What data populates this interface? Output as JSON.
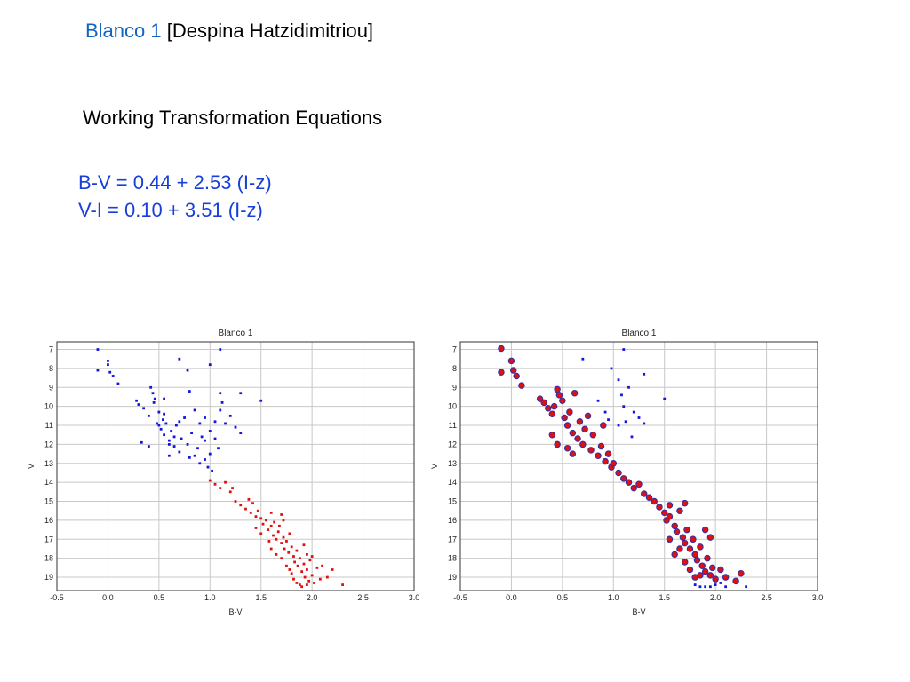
{
  "header": {
    "title_accent": "Blanco 1",
    "title_rest": " [Despina Hatzidimitriou]",
    "subtitle": "Working Transformation Equations",
    "equations": [
      "B-V = 0.44 + 2.53  (I-z)",
      "V-I = 0.10 + 3.51 (I-z)"
    ]
  },
  "colors": {
    "accent": "#1565c0",
    "equation": "#1a3fd8",
    "blue_points": "#1515e0",
    "red_points": "#e01010",
    "circle_outline": "#3a2da0"
  },
  "chart_data": [
    {
      "type": "scatter",
      "title": "Blanco 1",
      "xlabel": "B-V",
      "ylabel": "V",
      "xlim": [
        -0.5,
        3.0
      ],
      "ylim": [
        19.7,
        6.6
      ],
      "y_inverted": true,
      "grid": true,
      "xticks": [
        -0.5,
        0.0,
        0.5,
        1.0,
        1.5,
        2.0,
        2.5,
        3.0
      ],
      "xtick_labels": [
        "-0.5",
        "0.0",
        "0.5",
        "1.0",
        "1.5",
        "2.0",
        "2.5",
        "3.0"
      ],
      "yticks": [
        7,
        8,
        9,
        10,
        11,
        12,
        13,
        14,
        15,
        16,
        17,
        18,
        19
      ],
      "ytick_labels": [
        "7",
        "8",
        "9",
        "10",
        "11",
        "12",
        "13",
        "14",
        "15",
        "16",
        "17",
        "18",
        "19"
      ],
      "series": [
        {
          "color": "#1515e0",
          "marker": "square",
          "points": [
            [
              -0.1,
              7.0
            ],
            [
              -0.1,
              8.1
            ],
            [
              0.0,
              7.6
            ],
            [
              0.0,
              7.8
            ],
            [
              0.02,
              8.2
            ],
            [
              0.05,
              8.4
            ],
            [
              0.1,
              8.8
            ],
            [
              0.7,
              7.5
            ],
            [
              0.78,
              8.1
            ],
            [
              1.0,
              7.8
            ],
            [
              1.1,
              7.0
            ],
            [
              0.28,
              9.7
            ],
            [
              0.3,
              9.9
            ],
            [
              0.35,
              10.1
            ],
            [
              0.4,
              10.5
            ],
            [
              0.42,
              9.0
            ],
            [
              0.44,
              9.3
            ],
            [
              0.46,
              9.6
            ],
            [
              0.48,
              10.9
            ],
            [
              0.5,
              10.3
            ],
            [
              0.52,
              11.2
            ],
            [
              0.54,
              10.7
            ],
            [
              0.55,
              11.5
            ],
            [
              0.57,
              10.9
            ],
            [
              0.6,
              11.8
            ],
            [
              0.62,
              11.3
            ],
            [
              0.65,
              12.1
            ],
            [
              0.67,
              11.0
            ],
            [
              0.7,
              12.4
            ],
            [
              0.72,
              11.7
            ],
            [
              0.75,
              10.6
            ],
            [
              0.78,
              12.0
            ],
            [
              0.8,
              12.7
            ],
            [
              0.82,
              11.4
            ],
            [
              0.85,
              12.6
            ],
            [
              0.88,
              12.2
            ],
            [
              0.9,
              13.0
            ],
            [
              0.92,
              11.6
            ],
            [
              0.95,
              12.8
            ],
            [
              0.98,
              13.2
            ],
            [
              1.0,
              12.5
            ],
            [
              1.02,
              13.4
            ],
            [
              0.45,
              9.8
            ],
            [
              0.5,
              11.0
            ],
            [
              0.55,
              10.4
            ],
            [
              0.6,
              12.0
            ],
            [
              0.65,
              11.6
            ],
            [
              0.7,
              10.8
            ],
            [
              0.33,
              11.9
            ],
            [
              0.4,
              12.1
            ],
            [
              0.6,
              12.6
            ],
            [
              0.55,
              9.6
            ],
            [
              0.85,
              10.2
            ],
            [
              0.9,
              10.9
            ],
            [
              0.95,
              11.8
            ],
            [
              1.05,
              10.8
            ],
            [
              1.1,
              10.2
            ],
            [
              1.15,
              10.9
            ],
            [
              1.2,
              10.5
            ],
            [
              1.25,
              11.1
            ],
            [
              1.3,
              11.4
            ],
            [
              1.1,
              9.3
            ],
            [
              1.12,
              9.8
            ],
            [
              1.3,
              9.3
            ],
            [
              1.5,
              9.7
            ],
            [
              1.05,
              11.7
            ],
            [
              0.95,
              10.6
            ],
            [
              0.8,
              9.2
            ],
            [
              1.0,
              11.3
            ],
            [
              1.08,
              12.2
            ]
          ]
        },
        {
          "color": "#e01010",
          "marker": "square",
          "points": [
            [
              1.0,
              13.9
            ],
            [
              1.05,
              14.1
            ],
            [
              1.1,
              14.3
            ],
            [
              1.15,
              14.0
            ],
            [
              1.2,
              14.5
            ],
            [
              1.22,
              14.3
            ],
            [
              1.25,
              15.0
            ],
            [
              1.3,
              15.2
            ],
            [
              1.35,
              15.4
            ],
            [
              1.38,
              14.9
            ],
            [
              1.4,
              15.6
            ],
            [
              1.42,
              15.1
            ],
            [
              1.45,
              15.8
            ],
            [
              1.47,
              15.5
            ],
            [
              1.5,
              15.9
            ],
            [
              1.52,
              16.2
            ],
            [
              1.55,
              16.0
            ],
            [
              1.57,
              16.5
            ],
            [
              1.6,
              16.3
            ],
            [
              1.62,
              16.8
            ],
            [
              1.63,
              16.1
            ],
            [
              1.65,
              17.0
            ],
            [
              1.67,
              16.6
            ],
            [
              1.7,
              17.2
            ],
            [
              1.72,
              16.9
            ],
            [
              1.73,
              17.5
            ],
            [
              1.75,
              17.1
            ],
            [
              1.77,
              17.7
            ],
            [
              1.78,
              16.7
            ],
            [
              1.8,
              17.4
            ],
            [
              1.82,
              17.9
            ],
            [
              1.83,
              18.2
            ],
            [
              1.85,
              17.6
            ],
            [
              1.86,
              18.4
            ],
            [
              1.88,
              18.0
            ],
            [
              1.9,
              18.7
            ],
            [
              1.92,
              18.3
            ],
            [
              1.93,
              19.0
            ],
            [
              1.95,
              18.6
            ],
            [
              1.97,
              19.2
            ],
            [
              1.98,
              18.1
            ],
            [
              2.0,
              18.9
            ],
            [
              2.02,
              19.3
            ],
            [
              2.05,
              18.5
            ],
            [
              2.08,
              19.1
            ],
            [
              2.1,
              18.4
            ],
            [
              2.15,
              19.0
            ],
            [
              2.2,
              18.6
            ],
            [
              2.3,
              19.4
            ],
            [
              1.7,
              18.0
            ],
            [
              1.75,
              18.4
            ],
            [
              1.8,
              18.8
            ],
            [
              1.85,
              19.3
            ],
            [
              1.9,
              19.5
            ],
            [
              1.6,
              17.5
            ],
            [
              1.65,
              17.8
            ],
            [
              1.88,
              19.4
            ],
            [
              1.95,
              19.4
            ],
            [
              1.82,
              19.1
            ],
            [
              1.78,
              18.6
            ],
            [
              1.68,
              16.3
            ],
            [
              1.72,
              16.0
            ],
            [
              1.95,
              17.8
            ],
            [
              2.0,
              17.9
            ],
            [
              1.92,
              17.3
            ],
            [
              1.6,
              15.6
            ],
            [
              1.7,
              15.7
            ],
            [
              1.45,
              16.4
            ],
            [
              1.5,
              16.7
            ],
            [
              1.58,
              17.1
            ]
          ]
        }
      ]
    },
    {
      "type": "scatter",
      "title": "Blanco 1",
      "xlabel": "B-V",
      "ylabel": "V",
      "xlim": [
        -0.5,
        3.0
      ],
      "ylim": [
        19.7,
        6.6
      ],
      "y_inverted": true,
      "grid": true,
      "xticks": [
        -0.5,
        0.0,
        0.5,
        1.0,
        1.5,
        2.0,
        2.5,
        3.0
      ],
      "xtick_labels": [
        "-0.5",
        "0.0",
        "0.5",
        "1.0",
        "1.5",
        "2.0",
        "2.5",
        "3.0"
      ],
      "yticks": [
        7,
        8,
        9,
        10,
        11,
        12,
        13,
        14,
        15,
        16,
        17,
        18,
        19
      ],
      "ytick_labels": [
        "7",
        "8",
        "9",
        "10",
        "11",
        "12",
        "13",
        "14",
        "15",
        "16",
        "17",
        "18",
        "19"
      ],
      "series": [
        {
          "color": "#1515e0",
          "marker": "square",
          "points": [
            [
              0.7,
              7.5
            ],
            [
              0.98,
              8.0
            ],
            [
              1.1,
              7.0
            ],
            [
              1.05,
              8.6
            ],
            [
              1.15,
              9.0
            ],
            [
              1.3,
              8.3
            ],
            [
              1.08,
              9.4
            ],
            [
              1.1,
              10.0
            ],
            [
              1.2,
              10.3
            ],
            [
              1.25,
              10.6
            ],
            [
              1.3,
              10.9
            ],
            [
              0.92,
              10.3
            ],
            [
              0.95,
              10.7
            ],
            [
              1.05,
              11.0
            ],
            [
              1.12,
              10.8
            ],
            [
              1.18,
              11.6
            ],
            [
              0.85,
              9.7
            ],
            [
              1.5,
              9.6
            ],
            [
              1.9,
              19.5
            ],
            [
              1.95,
              19.5
            ],
            [
              2.0,
              19.4
            ],
            [
              2.05,
              19.3
            ],
            [
              2.1,
              19.5
            ],
            [
              2.3,
              19.5
            ],
            [
              1.8,
              19.4
            ],
            [
              1.85,
              19.5
            ]
          ]
        },
        {
          "color": "#e01010",
          "marker": "circle",
          "points": [
            [
              -0.1,
              6.95
            ],
            [
              -0.1,
              8.2
            ],
            [
              0.0,
              7.6
            ],
            [
              0.02,
              8.1
            ],
            [
              0.05,
              8.4
            ],
            [
              0.1,
              8.9
            ],
            [
              0.28,
              9.6
            ],
            [
              0.32,
              9.8
            ],
            [
              0.36,
              10.1
            ],
            [
              0.4,
              10.4
            ],
            [
              0.42,
              10.0
            ],
            [
              0.45,
              9.1
            ],
            [
              0.47,
              9.4
            ],
            [
              0.5,
              9.7
            ],
            [
              0.52,
              10.6
            ],
            [
              0.55,
              11.0
            ],
            [
              0.57,
              10.3
            ],
            [
              0.6,
              11.4
            ],
            [
              0.62,
              9.3
            ],
            [
              0.65,
              11.7
            ],
            [
              0.67,
              10.8
            ],
            [
              0.7,
              12.0
            ],
            [
              0.72,
              11.2
            ],
            [
              0.75,
              10.5
            ],
            [
              0.78,
              12.3
            ],
            [
              0.8,
              11.5
            ],
            [
              0.85,
              12.6
            ],
            [
              0.88,
              12.1
            ],
            [
              0.9,
              11.0
            ],
            [
              0.92,
              12.9
            ],
            [
              0.95,
              12.5
            ],
            [
              0.98,
              13.2
            ],
            [
              1.0,
              13.0
            ],
            [
              1.05,
              13.5
            ],
            [
              1.1,
              13.8
            ],
            [
              1.15,
              14.0
            ],
            [
              1.2,
              14.3
            ],
            [
              1.25,
              14.1
            ],
            [
              1.3,
              14.6
            ],
            [
              1.35,
              14.8
            ],
            [
              1.4,
              15.0
            ],
            [
              1.45,
              15.3
            ],
            [
              1.5,
              15.6
            ],
            [
              1.52,
              16.0
            ],
            [
              1.55,
              15.8
            ],
            [
              1.6,
              16.3
            ],
            [
              1.62,
              16.6
            ],
            [
              1.65,
              15.5
            ],
            [
              1.68,
              16.9
            ],
            [
              1.7,
              17.2
            ],
            [
              1.72,
              16.5
            ],
            [
              1.75,
              17.5
            ],
            [
              1.78,
              17.0
            ],
            [
              1.8,
              17.8
            ],
            [
              1.82,
              18.1
            ],
            [
              1.85,
              17.4
            ],
            [
              1.87,
              18.4
            ],
            [
              1.9,
              18.7
            ],
            [
              1.92,
              18.0
            ],
            [
              1.95,
              18.9
            ],
            [
              1.97,
              18.5
            ],
            [
              2.0,
              19.1
            ],
            [
              2.05,
              18.6
            ],
            [
              2.1,
              19.0
            ],
            [
              2.2,
              19.2
            ],
            [
              2.25,
              18.8
            ],
            [
              0.45,
              12.0
            ],
            [
              0.6,
              12.5
            ],
            [
              0.4,
              11.5
            ],
            [
              0.55,
              12.2
            ],
            [
              1.7,
              18.2
            ],
            [
              1.75,
              18.6
            ],
            [
              1.8,
              19.0
            ],
            [
              1.85,
              18.9
            ],
            [
              1.6,
              17.8
            ],
            [
              1.65,
              17.5
            ],
            [
              1.55,
              17.0
            ],
            [
              1.95,
              16.9
            ],
            [
              1.9,
              16.5
            ],
            [
              1.7,
              15.1
            ],
            [
              1.55,
              15.2
            ]
          ]
        }
      ]
    }
  ]
}
